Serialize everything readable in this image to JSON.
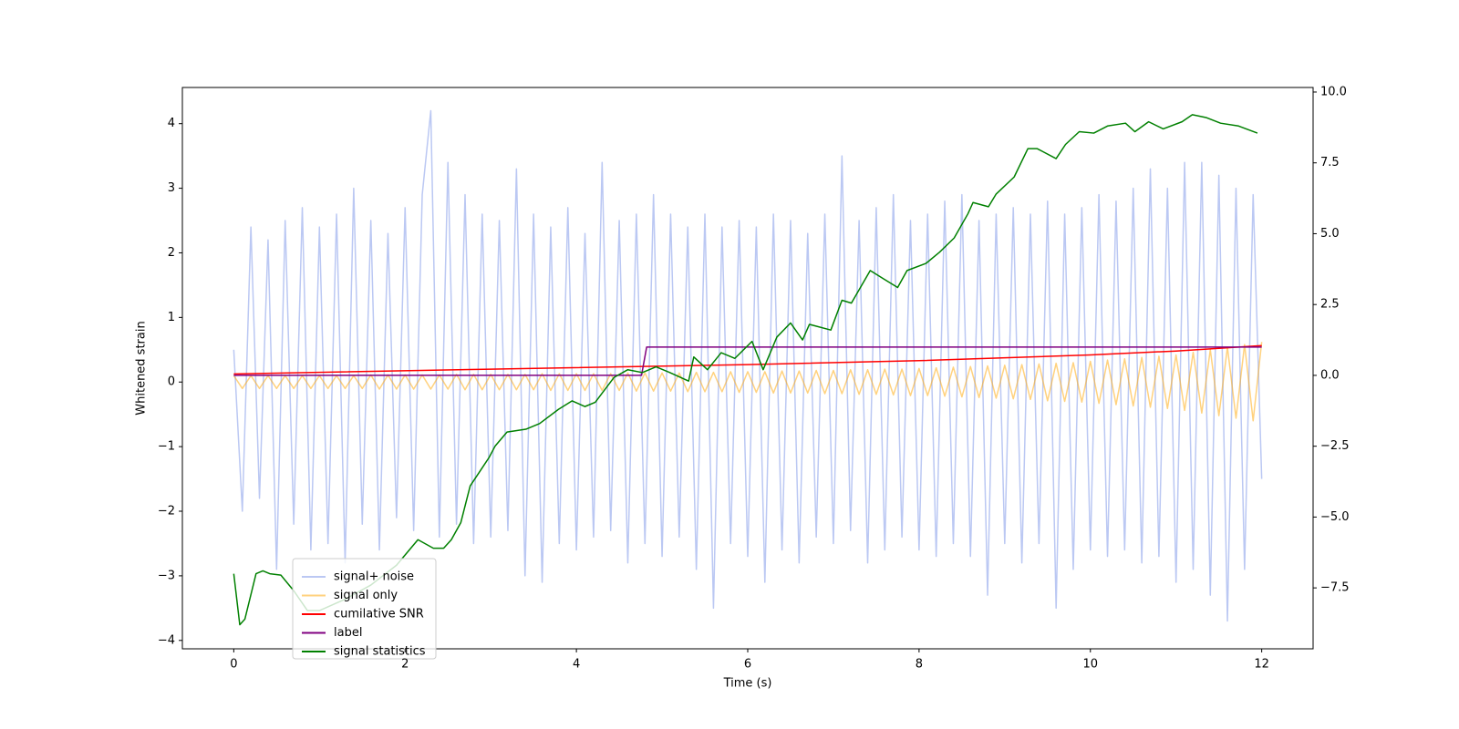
{
  "chart_data": {
    "type": "line",
    "xlabel": "Time (s)",
    "ylabel": "Whitened strain",
    "x": [
      0,
      0.1,
      0.2,
      0.3,
      0.4,
      0.5,
      0.6,
      0.7,
      0.8,
      0.9,
      1,
      1.1,
      1.2,
      1.3,
      1.4,
      1.5,
      1.6,
      1.7,
      1.8,
      1.9,
      2,
      2.1,
      2.2,
      2.3,
      2.4,
      2.5,
      2.6,
      2.7,
      2.8,
      2.9,
      3,
      3.1,
      3.2,
      3.3,
      3.4,
      3.5,
      3.6,
      3.7,
      3.8,
      3.9,
      4,
      4.1,
      4.2,
      4.3,
      4.4,
      4.5,
      4.6,
      4.7,
      4.8,
      4.9,
      5,
      5.1,
      5.2,
      5.3,
      5.4,
      5.5,
      5.6,
      5.7,
      5.8,
      5.9,
      6,
      6.1,
      6.2,
      6.3,
      6.4,
      6.5,
      6.6,
      6.7,
      6.8,
      6.9,
      7,
      7.1,
      7.2,
      7.3,
      7.4,
      7.5,
      7.6,
      7.7,
      7.8,
      7.9,
      8,
      8.1,
      8.2,
      8.3,
      8.4,
      8.5,
      8.6,
      8.7,
      8.8,
      8.9,
      9,
      9.1,
      9.2,
      9.3,
      9.4,
      9.5,
      9.6,
      9.7,
      9.8,
      9.9,
      10,
      10.1,
      10.2,
      10.3,
      10.4,
      10.5,
      10.6,
      10.7,
      10.8,
      10.9,
      11,
      11.1,
      11.2,
      11.3,
      11.4,
      11.5,
      11.6,
      11.7,
      11.8,
      11.9,
      12
    ],
    "series": [
      {
        "name": "signal+ noise",
        "color": "#7891e8",
        "values": [
          0.5,
          -2.0,
          2.4,
          -1.8,
          2.2,
          -2.9,
          2.5,
          -2.2,
          2.7,
          -2.6,
          2.4,
          -2.5,
          2.6,
          -2.8,
          3.0,
          -2.2,
          2.5,
          -2.6,
          2.3,
          -2.1,
          2.7,
          -2.3,
          2.9,
          4.2,
          -2.4,
          3.4,
          -2.2,
          2.9,
          -2.5,
          2.6,
          -2.4,
          2.5,
          -2.3,
          3.3,
          -3.0,
          2.6,
          -3.1,
          2.4,
          -2.5,
          2.7,
          -2.6,
          2.3,
          -2.4,
          3.4,
          -2.3,
          2.5,
          -2.8,
          2.6,
          -2.5,
          2.9,
          -2.7,
          2.6,
          -2.4,
          2.4,
          -2.9,
          2.6,
          -3.5,
          2.4,
          -2.5,
          2.5,
          -2.7,
          2.4,
          -3.1,
          2.6,
          -2.6,
          2.5,
          -2.8,
          2.3,
          -2.4,
          2.6,
          -2.5,
          3.5,
          -2.3,
          2.5,
          -2.8,
          2.7,
          -2.6,
          2.9,
          -2.4,
          2.5,
          -2.6,
          2.6,
          -2.7,
          2.8,
          -2.5,
          2.9,
          -2.7,
          2.5,
          -3.3,
          2.6,
          -2.5,
          2.7,
          -2.8,
          2.6,
          -2.5,
          2.8,
          -3.5,
          2.6,
          -2.9,
          2.7,
          -2.6,
          2.9,
          -2.7,
          2.8,
          -2.6,
          3.0,
          -2.8,
          3.3,
          -2.7,
          3.0,
          -3.1,
          3.4,
          -2.9,
          3.4,
          -3.3,
          3.2,
          -3.7,
          3.0,
          -2.9,
          2.9,
          -1.5
        ]
      },
      {
        "name": "signal only",
        "color": "#ffa500",
        "values": [
          0.1,
          -0.1,
          0.1,
          -0.1,
          0.1,
          -0.1,
          0.1,
          -0.1,
          0.1,
          -0.1,
          0.1,
          -0.1,
          0.1,
          -0.1,
          0.1,
          -0.1,
          0.11,
          -0.11,
          0.11,
          -0.11,
          0.11,
          -0.11,
          0.11,
          -0.11,
          0.11,
          -0.11,
          0.12,
          -0.12,
          0.12,
          -0.12,
          0.12,
          -0.12,
          0.12,
          -0.12,
          0.12,
          -0.12,
          0.13,
          -0.13,
          0.13,
          -0.13,
          0.13,
          -0.13,
          0.13,
          -0.13,
          0.13,
          -0.13,
          0.14,
          -0.14,
          0.14,
          -0.14,
          0.14,
          -0.14,
          0.14,
          -0.15,
          0.15,
          -0.15,
          0.15,
          -0.15,
          0.16,
          -0.16,
          0.16,
          -0.16,
          0.16,
          -0.17,
          0.17,
          -0.17,
          0.17,
          -0.17,
          0.18,
          -0.18,
          0.18,
          -0.18,
          0.19,
          -0.19,
          0.19,
          -0.19,
          0.2,
          -0.2,
          0.2,
          -0.21,
          0.21,
          -0.21,
          0.22,
          -0.22,
          0.23,
          -0.23,
          0.24,
          -0.24,
          0.25,
          -0.25,
          0.26,
          -0.26,
          0.27,
          -0.27,
          0.28,
          -0.29,
          0.29,
          -0.3,
          0.3,
          -0.31,
          0.32,
          -0.33,
          0.34,
          -0.35,
          0.36,
          -0.37,
          0.38,
          -0.39,
          0.4,
          -0.41,
          0.42,
          -0.44,
          0.46,
          -0.48,
          0.5,
          -0.52,
          0.54,
          -0.56,
          0.58,
          -0.6,
          0.62
        ]
      },
      {
        "name": "cumilative SNR",
        "color": "#ff0000",
        "axis": "y2",
        "x": [
          0,
          3,
          6,
          8,
          10,
          11,
          12
        ],
        "values": [
          0.05,
          0.22,
          0.38,
          0.52,
          0.72,
          0.86,
          1.05
        ]
      },
      {
        "name": "label",
        "color": "#800080",
        "axis": "y2",
        "x": [
          0,
          4.76,
          4.82,
          12
        ],
        "values": [
          0,
          0,
          1,
          1
        ]
      },
      {
        "name": "signal statistics",
        "color": "#008000",
        "axis": "y2",
        "x": [
          0,
          0.07,
          0.13,
          0.26,
          0.34,
          0.42,
          0.55,
          0.7,
          0.86,
          1.0,
          1.3,
          1.6,
          1.9,
          2.15,
          2.33,
          2.45,
          2.54,
          2.65,
          2.76,
          2.87,
          2.98,
          3.05,
          3.19,
          3.41,
          3.57,
          3.79,
          3.95,
          4.1,
          4.22,
          4.44,
          4.6,
          4.77,
          4.93,
          5.09,
          5.31,
          5.37,
          5.53,
          5.69,
          5.85,
          6.05,
          6.18,
          6.34,
          6.5,
          6.64,
          6.72,
          6.97,
          7.1,
          7.21,
          7.43,
          7.59,
          7.75,
          7.86,
          8.08,
          8.24,
          8.41,
          8.57,
          8.63,
          8.81,
          8.9,
          9.11,
          9.27,
          9.38,
          9.6,
          9.71,
          9.87,
          10.04,
          10.2,
          10.41,
          10.52,
          10.68,
          10.85,
          11.07,
          11.19,
          11.35,
          11.52,
          11.73,
          11.95
        ],
        "values": [
          -7.0,
          -8.8,
          -8.6,
          -7.0,
          -6.9,
          -7.0,
          -7.05,
          -7.6,
          -8.3,
          -8.3,
          -7.9,
          -7.4,
          -6.7,
          -5.8,
          -6.1,
          -6.1,
          -5.8,
          -5.2,
          -3.9,
          -3.4,
          -2.9,
          -2.5,
          -2.0,
          -1.9,
          -1.7,
          -1.2,
          -0.9,
          -1.1,
          -0.95,
          -0.07,
          0.2,
          0.1,
          0.3,
          0.1,
          -0.2,
          0.65,
          0.2,
          0.8,
          0.6,
          1.2,
          0.2,
          1.35,
          1.85,
          1.25,
          1.8,
          1.6,
          2.65,
          2.55,
          3.7,
          3.4,
          3.1,
          3.7,
          3.95,
          4.35,
          4.85,
          5.7,
          6.1,
          5.95,
          6.4,
          7.0,
          8.0,
          8.0,
          7.65,
          8.15,
          8.6,
          8.55,
          8.8,
          8.9,
          8.6,
          8.95,
          8.7,
          8.95,
          9.2,
          9.1,
          8.9,
          8.8,
          8.55
        ]
      }
    ],
    "xlim": [
      -0.6,
      12.6
    ],
    "xticks": [
      0,
      2,
      4,
      6,
      8,
      10,
      12
    ],
    "ylim": [
      -4.13,
      4.56
    ],
    "yticks": [
      {
        "value": -4,
        "label": "−4"
      },
      {
        "value": -3,
        "label": "−3"
      },
      {
        "value": -2,
        "label": "−2"
      },
      {
        "value": -1,
        "label": "−1"
      },
      0,
      1,
      2,
      3,
      4
    ],
    "y2lim": [
      -9.65,
      10.16
    ],
    "y2ticks": [
      {
        "value": -7.5,
        "label": "−7.5"
      },
      {
        "value": -5,
        "label": "−5.0"
      },
      {
        "value": -2.5,
        "label": "−2.5"
      },
      {
        "value": 0,
        "label": "0.0"
      },
      {
        "value": 2.5,
        "label": "2.5"
      },
      {
        "value": 5,
        "label": "5.0"
      },
      {
        "value": 7.5,
        "label": "7.5"
      },
      {
        "value": 10,
        "label": "10.0"
      }
    ]
  }
}
